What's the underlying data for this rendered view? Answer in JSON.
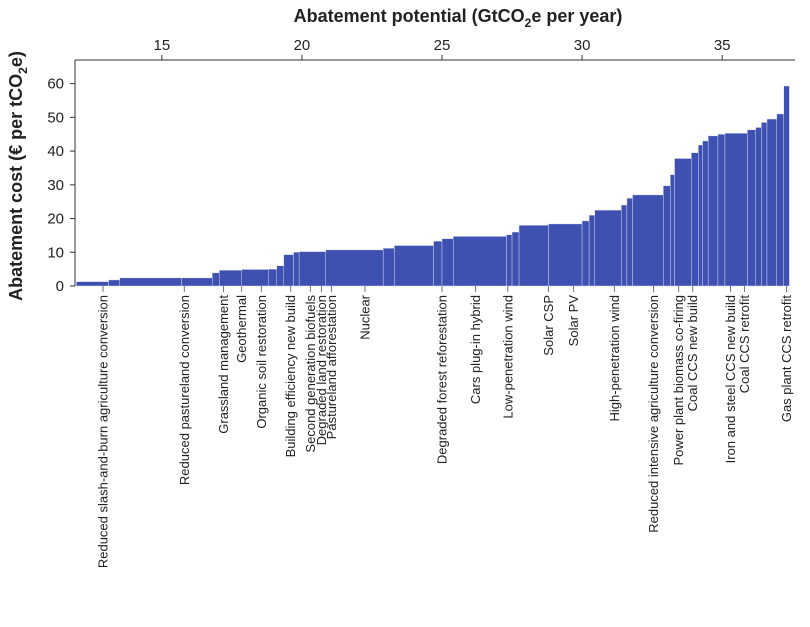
{
  "chart_data": {
    "type": "bar",
    "title": "",
    "xlabel_pre": "Abatement potential (GtCO",
    "xlabel_sub": "2",
    "xlabel_post": "e per year)",
    "ylabel_pre": "Abatement cost (€ per tCO",
    "ylabel_sub": "2",
    "ylabel_post": "e)",
    "x_ticks": [
      15,
      20,
      25,
      30,
      35
    ],
    "y_ticks": [
      0,
      10,
      20,
      30,
      40,
      50,
      60
    ],
    "xlim": [
      11.9,
      37.6
    ],
    "ylim": [
      0,
      67
    ],
    "color": "#3f51b0",
    "segments": [
      {
        "x0": 11.95,
        "x1": 13.1,
        "y": 1.3
      },
      {
        "x0": 13.1,
        "x1": 13.5,
        "y": 1.8
      },
      {
        "x0": 13.5,
        "x1": 15.7,
        "y": 2.4
      },
      {
        "x0": 15.7,
        "x1": 16.8,
        "y": 2.4
      },
      {
        "x0": 16.8,
        "x1": 17.05,
        "y": 3.9
      },
      {
        "x0": 17.05,
        "x1": 17.85,
        "y": 4.7
      },
      {
        "x0": 17.85,
        "x1": 18.8,
        "y": 4.9
      },
      {
        "x0": 18.8,
        "x1": 19.1,
        "y": 5.0
      },
      {
        "x0": 19.1,
        "x1": 19.35,
        "y": 6.0
      },
      {
        "x0": 19.35,
        "x1": 19.7,
        "y": 9.3
      },
      {
        "x0": 19.7,
        "x1": 19.9,
        "y": 10.0
      },
      {
        "x0": 19.9,
        "x1": 20.85,
        "y": 10.2
      },
      {
        "x0": 20.85,
        "x1": 22.9,
        "y": 10.7
      },
      {
        "x0": 22.9,
        "x1": 23.3,
        "y": 11.2
      },
      {
        "x0": 23.3,
        "x1": 24.7,
        "y": 12.0
      },
      {
        "x0": 24.7,
        "x1": 25.0,
        "y": 13.3
      },
      {
        "x0": 25.0,
        "x1": 25.4,
        "y": 14.0
      },
      {
        "x0": 25.4,
        "x1": 27.3,
        "y": 14.7
      },
      {
        "x0": 27.3,
        "x1": 27.5,
        "y": 15.2
      },
      {
        "x0": 27.5,
        "x1": 27.75,
        "y": 16.0
      },
      {
        "x0": 27.75,
        "x1": 28.8,
        "y": 18.0
      },
      {
        "x0": 28.8,
        "x1": 30.0,
        "y": 18.4
      },
      {
        "x0": 30.0,
        "x1": 30.25,
        "y": 19.3
      },
      {
        "x0": 30.25,
        "x1": 30.45,
        "y": 21.0
      },
      {
        "x0": 30.45,
        "x1": 31.4,
        "y": 22.5
      },
      {
        "x0": 31.4,
        "x1": 31.6,
        "y": 24.0
      },
      {
        "x0": 31.6,
        "x1": 31.8,
        "y": 26.0
      },
      {
        "x0": 31.8,
        "x1": 32.9,
        "y": 27.0
      },
      {
        "x0": 32.9,
        "x1": 33.15,
        "y": 29.7
      },
      {
        "x0": 33.15,
        "x1": 33.3,
        "y": 33.0
      },
      {
        "x0": 33.3,
        "x1": 33.9,
        "y": 37.8
      },
      {
        "x0": 33.9,
        "x1": 34.15,
        "y": 39.5
      },
      {
        "x0": 34.15,
        "x1": 34.3,
        "y": 41.8
      },
      {
        "x0": 34.3,
        "x1": 34.5,
        "y": 43.0
      },
      {
        "x0": 34.5,
        "x1": 34.85,
        "y": 44.5
      },
      {
        "x0": 34.85,
        "x1": 35.1,
        "y": 45.0
      },
      {
        "x0": 35.1,
        "x1": 35.9,
        "y": 45.3
      },
      {
        "x0": 35.9,
        "x1": 36.2,
        "y": 46.3
      },
      {
        "x0": 36.2,
        "x1": 36.4,
        "y": 47.0
      },
      {
        "x0": 36.4,
        "x1": 36.6,
        "y": 48.5
      },
      {
        "x0": 36.6,
        "x1": 36.95,
        "y": 49.5
      },
      {
        "x0": 36.95,
        "x1": 37.2,
        "y": 51.0
      },
      {
        "x0": 37.2,
        "x1": 37.4,
        "y": 59.3
      }
    ],
    "categories": [
      {
        "label": "Reduced slash-and-burn agriculture conversion",
        "x": 12.9
      },
      {
        "label": "Reduced pastureland conversion",
        "x": 15.8
      },
      {
        "label": "Grassland management",
        "x": 17.2
      },
      {
        "label": "Geothermal",
        "x": 17.85
      },
      {
        "label": "Organic soil restoration",
        "x": 18.55
      },
      {
        "label": "Building efficiency new build",
        "x": 19.6
      },
      {
        "label": "Second generation biofuels",
        "x": 20.3
      },
      {
        "label": "Degraded land restoration",
        "x": 20.7
      },
      {
        "label": "Pastureland afforestation",
        "x": 21.05
      },
      {
        "label": "Nuclear",
        "x": 22.25
      },
      {
        "label": "Degraded forest reforestation",
        "x": 25.0
      },
      {
        "label": "Cars plug-in hybrid",
        "x": 26.2
      },
      {
        "label": "Low-penetration wind",
        "x": 27.35
      },
      {
        "label": "Solar CSP",
        "x": 28.8
      },
      {
        "label": "Solar PV",
        "x": 29.7
      },
      {
        "label": "High-penetration wind",
        "x": 31.15
      },
      {
        "label": "Reduced intensive agriculture conversion",
        "x": 32.55
      },
      {
        "label": "Power plant biomass co-firing",
        "x": 33.45
      },
      {
        "label": "Coal CCS new build",
        "x": 33.95
      },
      {
        "label": "Iron and steel CCS new build",
        "x": 35.3
      },
      {
        "label": "Coal CCS retrofit",
        "x": 35.8
      },
      {
        "label": "Gas plant CCS retrofit",
        "x": 37.3
      }
    ]
  }
}
